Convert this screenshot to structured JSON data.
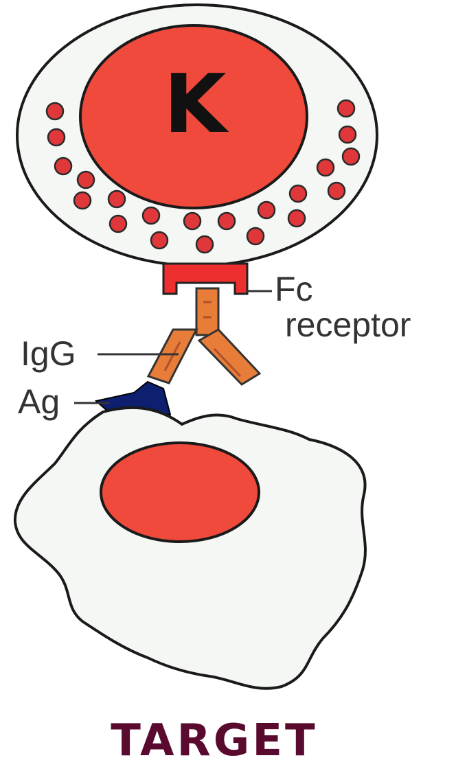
{
  "diagram": {
    "killer_cell": {
      "letter": "K"
    },
    "labels": {
      "fc_line1": "Fc",
      "fc_line2": "receptor",
      "igg": "IgG",
      "ag": "Ag"
    },
    "target_title": "TARGET"
  },
  "colors": {
    "nucleus": "#ef4a3c",
    "granule": "#e0383a",
    "cell_fill": "#f5f7f4",
    "fc_receptor": "#ee2f2f",
    "igg": "#e87d3a",
    "antigen": "#0d1f6e",
    "title": "#5a0a2e"
  }
}
